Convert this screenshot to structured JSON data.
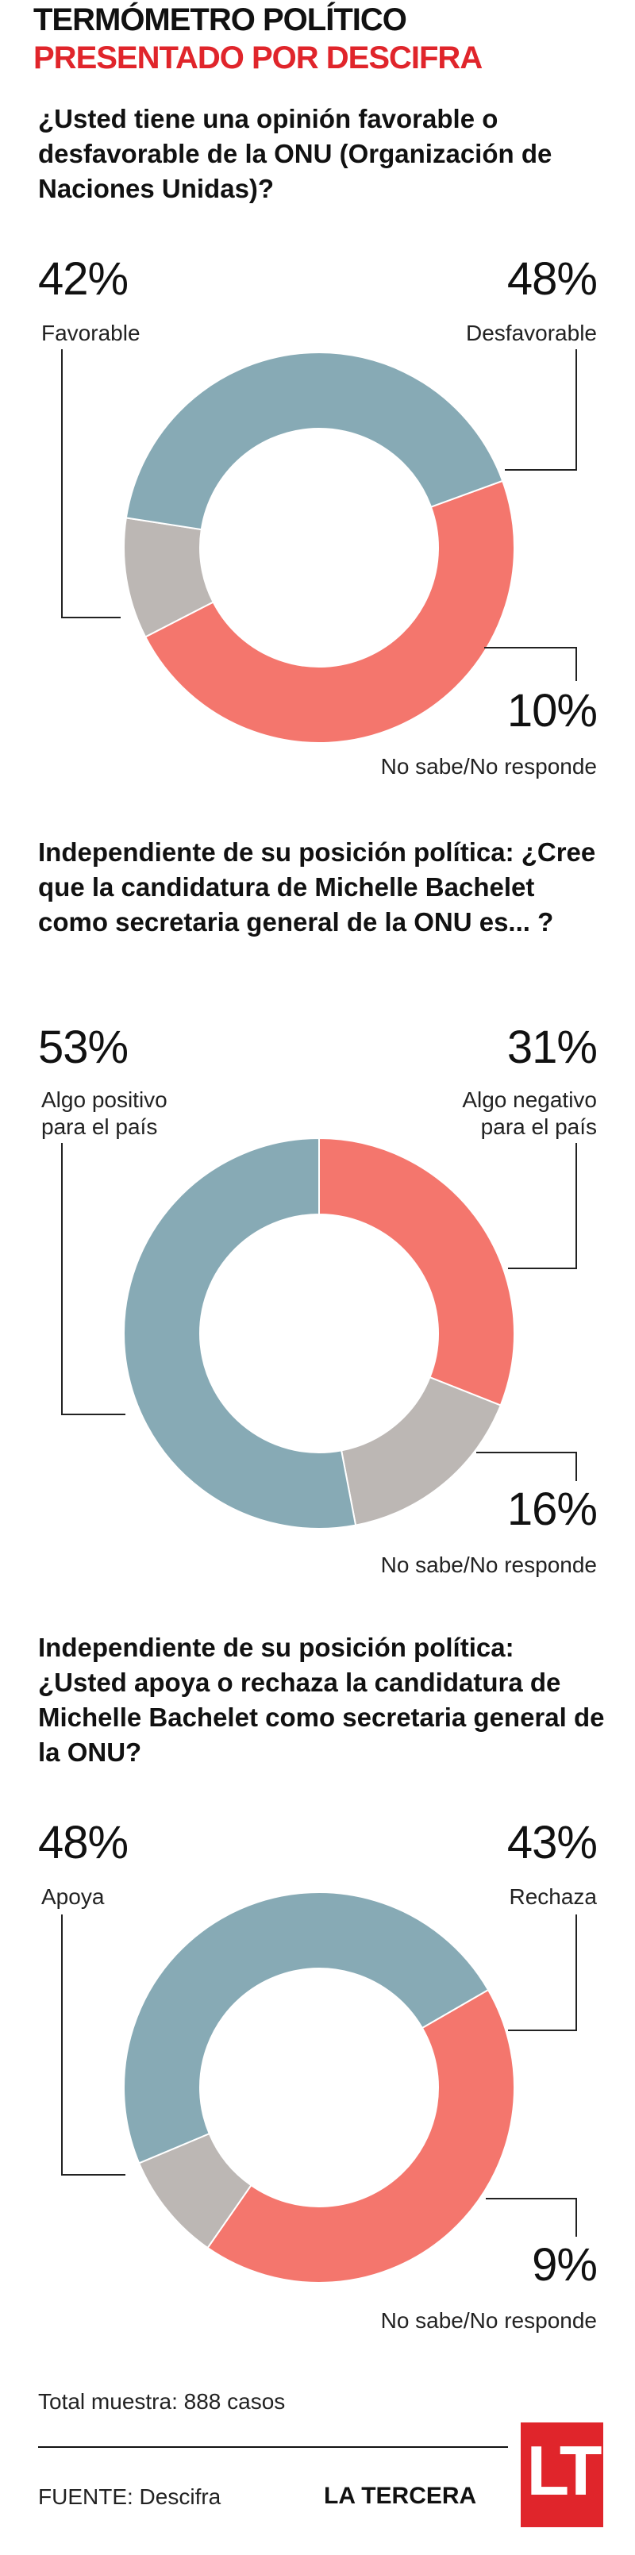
{
  "header": {
    "title": "TERMÓMETRO POLÍTICO",
    "subtitle": "PRESENTADO POR DESCIFRA"
  },
  "colors": {
    "red": "#f4766d",
    "blue": "#87aab5",
    "grey": "#bcb7b4",
    "brand_red": "#e0252b"
  },
  "chart_data": [
    {
      "type": "pie",
      "title": "¿Usted tiene una opinión favorable o desfavorable de la ONU (Organización de Naciones Unidas)?",
      "categories": [
        "Favorable",
        "Desfavorable",
        "No sabe/No responde"
      ],
      "values": [
        42,
        48,
        10
      ],
      "value_labels": [
        "42%",
        "48%",
        "10%"
      ],
      "colors": [
        "#87aab5",
        "#f4766d",
        "#bcb7b4"
      ]
    },
    {
      "type": "pie",
      "title": "Independiente de su posición política: ¿Cree que la candidatura de Michelle Bachelet como secretaria general de la ONU es... ?",
      "categories": [
        "Algo positivo para el país",
        "Algo negativo para el país",
        "No sabe/No responde"
      ],
      "values": [
        53,
        31,
        16
      ],
      "value_labels": [
        "53%",
        "31%",
        "16%"
      ],
      "colors": [
        "#87aab5",
        "#f4766d",
        "#bcb7b4"
      ]
    },
    {
      "type": "pie",
      "title": "Independiente de su posición política: ¿Usted apoya o rechaza la candidatura de Michelle Bachelet como secretaria general de la ONU?",
      "categories": [
        "Apoya",
        "Rechaza",
        "No sabe/No responde"
      ],
      "values": [
        48,
        43,
        9
      ],
      "value_labels": [
        "48%",
        "43%",
        "9%"
      ],
      "colors": [
        "#87aab5",
        "#f4766d",
        "#bcb7b4"
      ]
    }
  ],
  "q1": {
    "question": "¿Usted tiene una opinión favorable o desfavorable de la ONU (Organización de Naciones Unidas)?",
    "left_pct": "42%",
    "left_label": "Favorable",
    "right_pct": "48%",
    "right_label": "Desfavorable",
    "bottom_pct": "10%",
    "bottom_label": "No sabe/No responde"
  },
  "q2": {
    "question": "Independiente de su posición política: ¿Cree que la candidatura de Michelle Bachelet como secretaria general de la ONU es... ?",
    "left_pct": "53%",
    "left_label_1": "Algo positivo",
    "left_label_2": "para el país",
    "right_pct": "31%",
    "right_label_1": "Algo negativo",
    "right_label_2": "para el país",
    "bottom_pct": "16%",
    "bottom_label": "No sabe/No responde"
  },
  "q3": {
    "question": "Independiente de su posición política: ¿Usted apoya o rechaza la candidatura de Michelle Bachelet como secretaria general de la ONU?",
    "left_pct": "48%",
    "left_label": "Apoya",
    "right_pct": "43%",
    "right_label": "Rechaza",
    "bottom_pct": "9%",
    "bottom_label": "No sabe/No responde"
  },
  "footer": {
    "sample": "Total muestra: 888 casos",
    "source": "FUENTE: Descifra",
    "brand": "LA TERCERA",
    "logo_text": "LT"
  }
}
